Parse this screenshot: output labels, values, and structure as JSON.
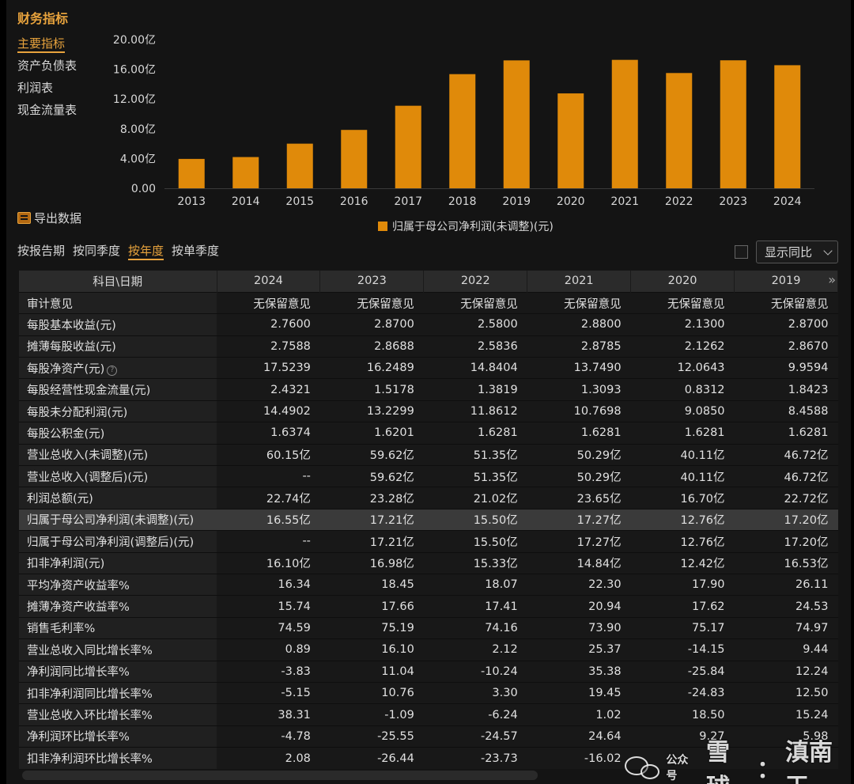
{
  "title": "财务指标",
  "sidebar": {
    "items": [
      {
        "label": "主要指标",
        "active": true
      },
      {
        "label": "资产负债表",
        "active": false
      },
      {
        "label": "利润表",
        "active": false
      },
      {
        "label": "现金流量表",
        "active": false
      }
    ]
  },
  "colors": {
    "accent": "#e8a33d",
    "bar": "#e08a0a",
    "background": "#141414",
    "highlight_row": "#3a3a3a"
  },
  "chart_data": {
    "type": "bar",
    "categories": [
      "2013",
      "2014",
      "2015",
      "2016",
      "2017",
      "2018",
      "2019",
      "2020",
      "2021",
      "2022",
      "2023",
      "2024"
    ],
    "series": [
      {
        "name": "归属于母公司净利润(未调整)(元)",
        "values": [
          3.95,
          4.2,
          6.0,
          7.85,
          11.1,
          15.35,
          17.2,
          12.76,
          17.27,
          15.5,
          17.21,
          16.55
        ]
      }
    ],
    "ylim": [
      0,
      20
    ],
    "yticks": [
      "0.00",
      "4.00亿",
      "8.00亿",
      "12.00亿",
      "16.00亿",
      "20.00亿"
    ],
    "grid": false,
    "legend_position": "bottom"
  },
  "export": {
    "label": "导出数据",
    "icon": "spreadsheet-icon"
  },
  "tabs": [
    {
      "label": "按报告期",
      "active": false
    },
    {
      "label": "按同季度",
      "active": false
    },
    {
      "label": "按年度",
      "active": true
    },
    {
      "label": "按单季度",
      "active": false
    }
  ],
  "yoy_toggle": {
    "label": "显示同比",
    "checked": false
  },
  "table": {
    "header_label": "科目\\日期",
    "columns": [
      "2024",
      "2023",
      "2022",
      "2021",
      "2020",
      "2019"
    ],
    "more_icon": "double-chevron-right-icon",
    "rows": [
      {
        "label": "审计意见",
        "values": [
          "无保留意见",
          "无保留意见",
          "无保留意见",
          "无保留意见",
          "无保留意见",
          "无保留意见"
        ]
      },
      {
        "label": "每股基本收益(元)",
        "values": [
          "2.7600",
          "2.8700",
          "2.5800",
          "2.8800",
          "2.1300",
          "2.8700"
        ]
      },
      {
        "label": "摊薄每股收益(元)",
        "values": [
          "2.7588",
          "2.8688",
          "2.5836",
          "2.8785",
          "2.1262",
          "2.8670"
        ]
      },
      {
        "label": "每股净资产(元)",
        "help": true,
        "values": [
          "17.5239",
          "16.2489",
          "14.8404",
          "13.7490",
          "12.0643",
          "9.9594"
        ]
      },
      {
        "label": "每股经营性现金流量(元)",
        "values": [
          "2.4321",
          "1.5178",
          "1.3819",
          "1.3093",
          "0.8312",
          "1.8423"
        ]
      },
      {
        "label": "每股未分配利润(元)",
        "values": [
          "14.4902",
          "13.2299",
          "11.8612",
          "10.7698",
          "9.0850",
          "8.4588"
        ]
      },
      {
        "label": "每股公积金(元)",
        "values": [
          "1.6374",
          "1.6201",
          "1.6281",
          "1.6281",
          "1.6281",
          "1.6281"
        ]
      },
      {
        "label": "营业总收入(未调整)(元)",
        "values": [
          "60.15亿",
          "59.62亿",
          "51.35亿",
          "50.29亿",
          "40.11亿",
          "46.72亿"
        ]
      },
      {
        "label": "营业总收入(调整后)(元)",
        "values": [
          "--",
          "59.62亿",
          "51.35亿",
          "50.29亿",
          "40.11亿",
          "46.72亿"
        ]
      },
      {
        "label": "利润总额(元)",
        "values": [
          "22.74亿",
          "23.28亿",
          "21.02亿",
          "23.65亿",
          "16.70亿",
          "22.72亿"
        ]
      },
      {
        "label": "归属于母公司净利润(未调整)(元)",
        "highlight": true,
        "values": [
          "16.55亿",
          "17.21亿",
          "15.50亿",
          "17.27亿",
          "12.76亿",
          "17.20亿"
        ]
      },
      {
        "label": "归属于母公司净利润(调整后)(元)",
        "values": [
          "--",
          "17.21亿",
          "15.50亿",
          "17.27亿",
          "12.76亿",
          "17.20亿"
        ]
      },
      {
        "label": "扣非净利润(元)",
        "values": [
          "16.10亿",
          "16.98亿",
          "15.33亿",
          "14.84亿",
          "12.42亿",
          "16.53亿"
        ]
      },
      {
        "label": "平均净资产收益率%",
        "values": [
          "16.34",
          "18.45",
          "18.07",
          "22.30",
          "17.90",
          "26.11"
        ]
      },
      {
        "label": "摊薄净资产收益率%",
        "values": [
          "15.74",
          "17.66",
          "17.41",
          "20.94",
          "17.62",
          "24.53"
        ]
      },
      {
        "label": "销售毛利率%",
        "values": [
          "74.59",
          "75.19",
          "74.16",
          "73.90",
          "75.17",
          "74.97"
        ]
      },
      {
        "label": "营业总收入同比增长率%",
        "values": [
          "0.89",
          "16.10",
          "2.12",
          "25.37",
          "-14.15",
          "9.44"
        ]
      },
      {
        "label": "净利润同比增长率%",
        "values": [
          "-3.83",
          "11.04",
          "-10.24",
          "35.38",
          "-25.84",
          "12.24"
        ]
      },
      {
        "label": "扣非净利润同比增长率%",
        "values": [
          "-5.15",
          "10.76",
          "3.30",
          "19.45",
          "-24.83",
          "12.50"
        ]
      },
      {
        "label": "营业总收入环比增长率%",
        "values": [
          "38.31",
          "-1.09",
          "-6.24",
          "1.02",
          "18.50",
          "15.24"
        ]
      },
      {
        "label": "净利润环比增长率%",
        "values": [
          "-4.78",
          "-25.55",
          "-24.57",
          "24.64",
          "9.27",
          "5.98"
        ]
      },
      {
        "label": "扣非净利润环比增长率%",
        "values": [
          "2.08",
          "-26.44",
          "-23.73",
          "-16.02",
          "",
          ""
        ]
      }
    ]
  },
  "watermark": {
    "platform": "雪球",
    "separator": "：",
    "author": "滇南王",
    "wechat_label": "公众号",
    "icon": "wechat-icon"
  }
}
